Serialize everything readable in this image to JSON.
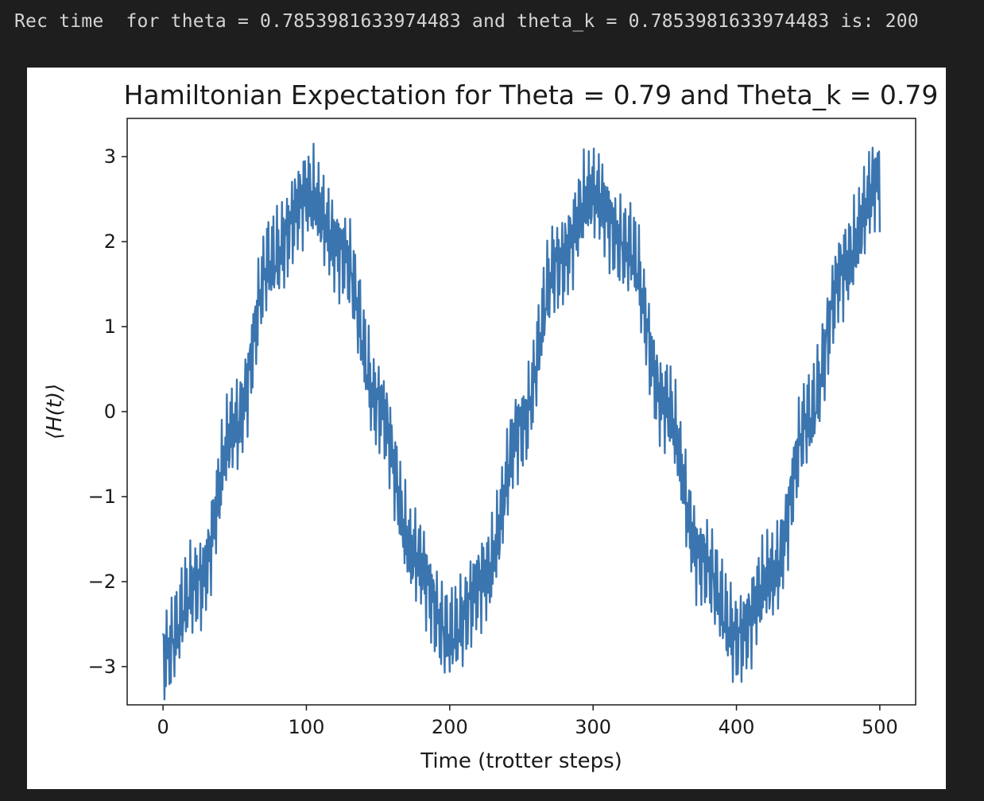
{
  "output": {
    "text": "Rec time  for theta = 0.7853981633974483 and theta_k = 0.7853981633974483 is: 200"
  },
  "chart_data": {
    "type": "line",
    "title": "Hamiltonian Expectation for Theta = 0.79 and Theta_k = 0.79",
    "xlabel": "Time (trotter steps)",
    "ylabel": "⟨H(t)⟩",
    "xlim": [
      -25,
      525
    ],
    "ylim": [
      -3.45,
      3.45
    ],
    "xticks": [
      0,
      100,
      200,
      300,
      400,
      500
    ],
    "xtick_labels": [
      "0",
      "100",
      "200",
      "300",
      "400",
      "500"
    ],
    "yticks": [
      3,
      2,
      1,
      0,
      -1,
      -2,
      -3
    ],
    "ytick_labels": [
      "3",
      "2",
      "1",
      "0",
      "−1",
      "−2",
      "−3"
    ],
    "grid": false,
    "line_color": "#3b75af",
    "series": [
      {
        "x": [
          0,
          25,
          50,
          75,
          100,
          125,
          150,
          175,
          200,
          225,
          250,
          275,
          300,
          325,
          350,
          375,
          400,
          425,
          450,
          475,
          500
        ],
        "y": [
          -2.85,
          -2.0,
          -0.2,
          1.75,
          2.55,
          1.9,
          0.1,
          -1.7,
          -2.65,
          -1.95,
          -0.15,
          1.75,
          2.55,
          1.9,
          0.1,
          -1.7,
          -2.65,
          -1.95,
          -0.1,
          1.7,
          2.75
        ]
      }
    ]
  }
}
